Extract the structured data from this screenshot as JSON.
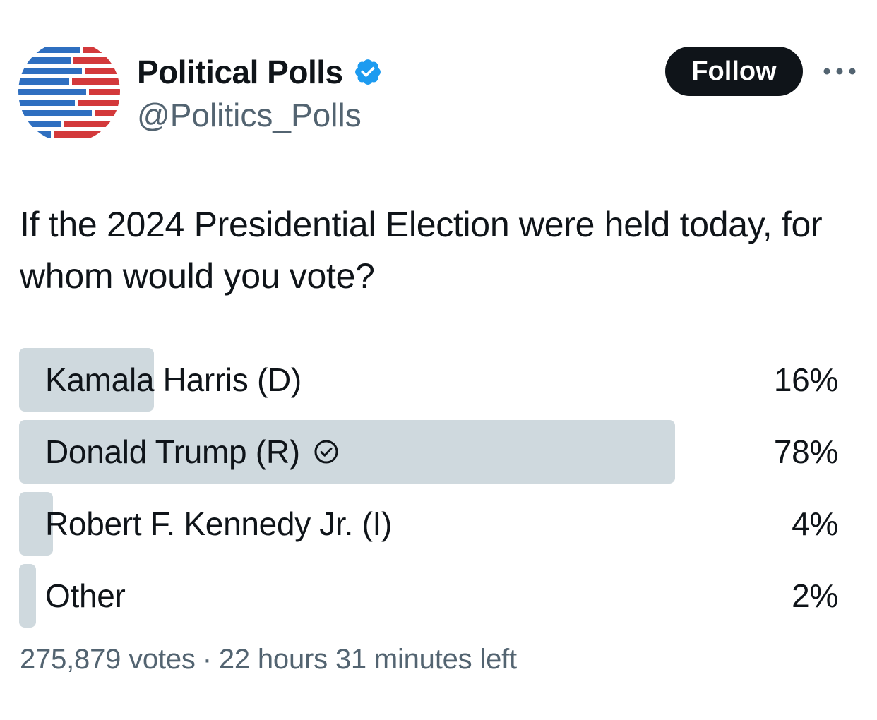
{
  "author": {
    "display_name": "Political Polls",
    "handle": "@Politics_Polls",
    "verified": true,
    "avatar_icon": "flag-stripes-avatar"
  },
  "actions": {
    "follow_label": "Follow",
    "more_icon": "more-horizontal-icon"
  },
  "tweet": {
    "text": "If the 2024 Presidential Election were held today, for whom would you vote?"
  },
  "poll": {
    "options": [
      {
        "label": "Kamala Harris (D)",
        "percent_text": "16%",
        "percent": 16,
        "selected": false
      },
      {
        "label": "Donald Trump (R)",
        "percent_text": "78%",
        "percent": 78,
        "selected": true
      },
      {
        "label": "Robert F. Kennedy Jr. (I)",
        "percent_text": "4%",
        "percent": 4,
        "selected": false
      },
      {
        "label": "Other",
        "percent_text": "2%",
        "percent": 2,
        "selected": false
      }
    ],
    "votes": "275,879 votes",
    "separator": "·",
    "time_left": "22 hours 31 minutes left"
  },
  "colors": {
    "bar": "#cfd9de",
    "verified_blue": "#1d9bf0",
    "text_primary": "#0f1419",
    "text_secondary": "#536471",
    "avatar_blue": "#2f6fc0",
    "avatar_red": "#d3393b"
  }
}
